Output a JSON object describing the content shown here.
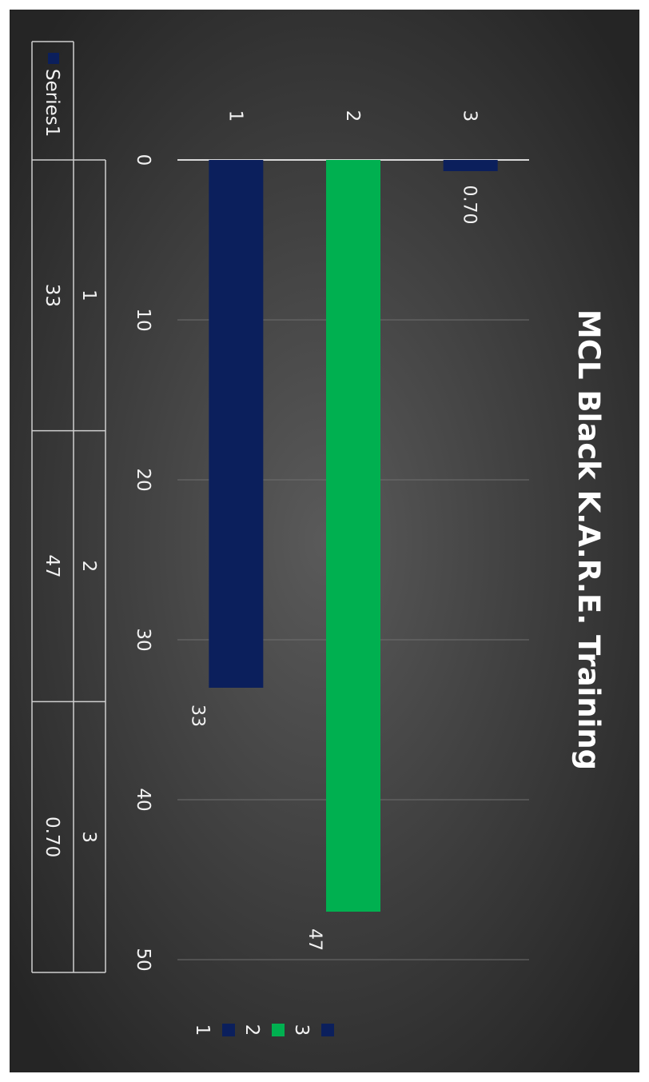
{
  "chart_data": {
    "type": "bar",
    "title": "MCL Black K.A.R.E. Training",
    "categories": [
      "1",
      "2",
      "3"
    ],
    "values": [
      33,
      47,
      0.7
    ],
    "value_labels": [
      "33",
      "47",
      "0.70"
    ],
    "value_ticks": [
      "0",
      "10",
      "20",
      "30",
      "40",
      "50"
    ],
    "xlim": [
      0,
      50
    ],
    "grid": true,
    "legend": {
      "placement": "bottom",
      "entries": [
        {
          "label": "1",
          "color": "#0b1f5c"
        },
        {
          "label": "2",
          "color": "#00b050"
        },
        {
          "label": "3",
          "color": "#0b1f5c"
        }
      ]
    },
    "data_table": {
      "series_name": "Series1",
      "series_color": "#0b1f5c",
      "headers": [
        "1",
        "2",
        "3"
      ],
      "values": [
        "33",
        "47",
        "0.70"
      ]
    }
  }
}
